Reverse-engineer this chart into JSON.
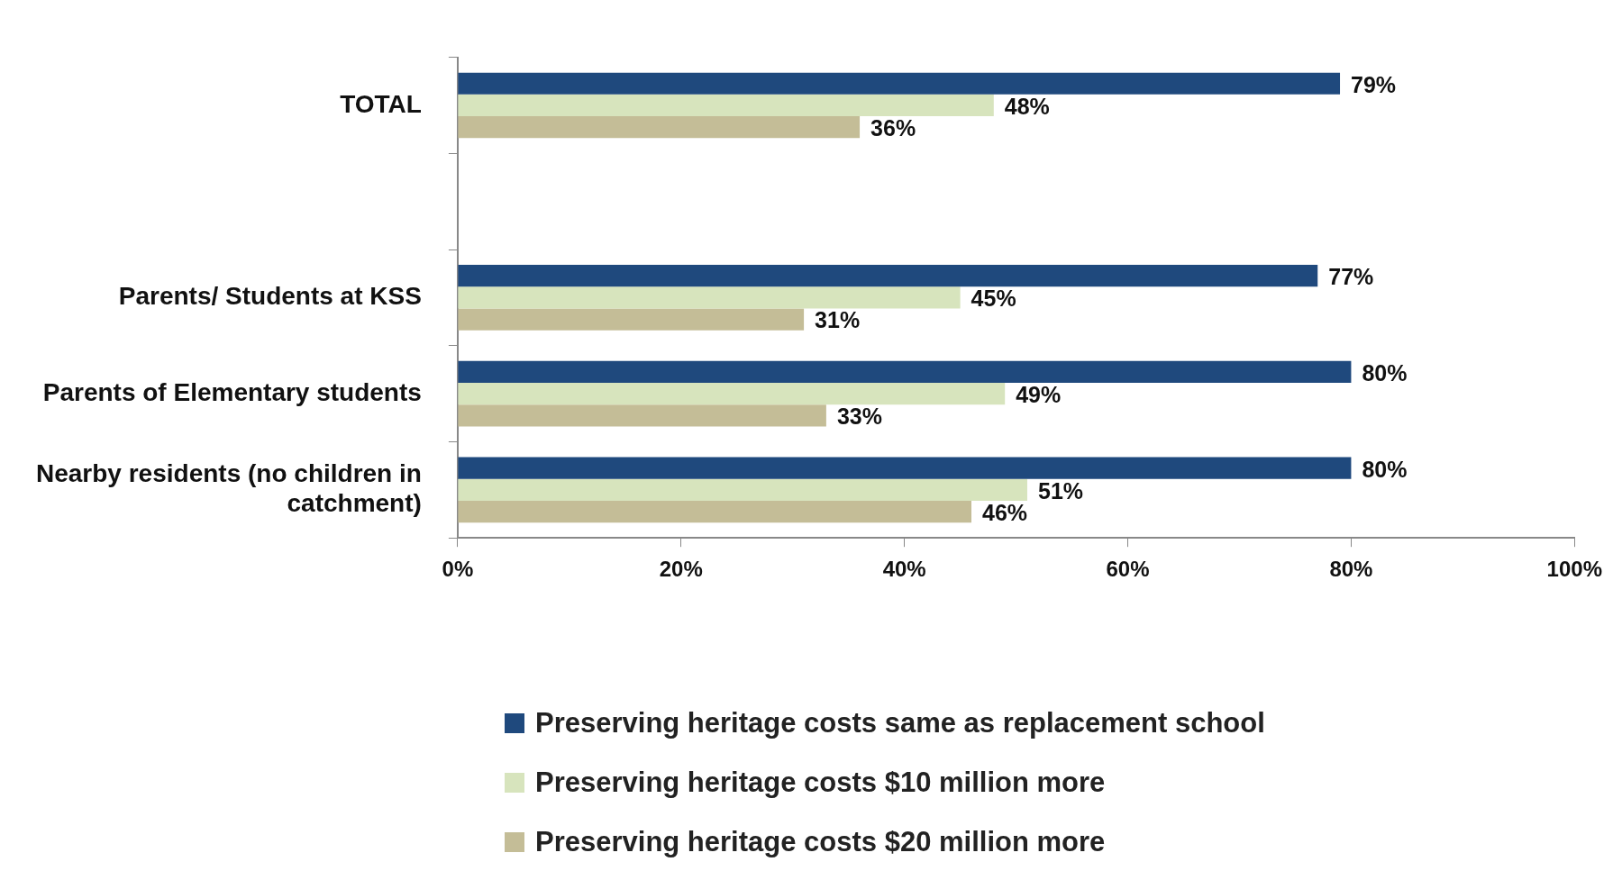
{
  "chart_data": {
    "type": "bar",
    "orientation": "horizontal",
    "categories": [
      "TOTAL",
      null,
      "Parents/ Students at KSS",
      "Parents of Elementary students",
      "Nearby residents (no children in catchment)"
    ],
    "series": [
      {
        "name": "Preserving heritage costs same as replacement school",
        "color": "#1f497d",
        "values": [
          79,
          null,
          77,
          80,
          80
        ],
        "value_labels": [
          "79%",
          null,
          "77%",
          "80%",
          "80%"
        ]
      },
      {
        "name": "Preserving heritage costs $10 million more",
        "color": "#d7e4bd",
        "values": [
          48,
          null,
          45,
          49,
          51
        ],
        "value_labels": [
          "48%",
          null,
          "45%",
          "49%",
          "51%"
        ]
      },
      {
        "name": "Preserving heritage costs $20 million more",
        "color": "#c4bd97",
        "values": [
          36,
          null,
          31,
          33,
          46
        ],
        "value_labels": [
          "36%",
          null,
          "31%",
          "33%",
          "46%"
        ]
      }
    ],
    "xlim": [
      0,
      100
    ],
    "xticks": [
      {
        "value": 0,
        "label": "0%"
      },
      {
        "value": 20,
        "label": "20%"
      },
      {
        "value": 40,
        "label": "40%"
      },
      {
        "value": 60,
        "label": "60%"
      },
      {
        "value": 80,
        "label": "80%"
      },
      {
        "value": 100,
        "label": "100%"
      }
    ],
    "grid": false,
    "legend": "bottom"
  }
}
